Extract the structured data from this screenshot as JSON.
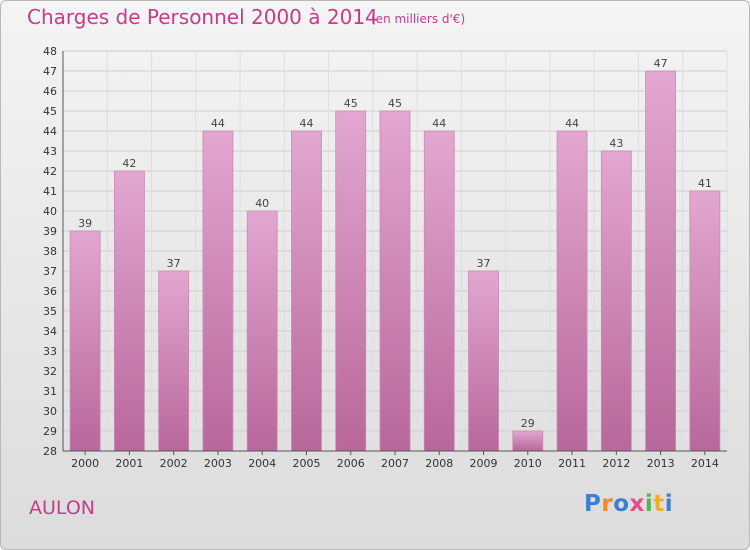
{
  "header": {
    "title": "Charges de Personnel 2000 à 2014",
    "subtitle": "(en milliers d'€)"
  },
  "footer": {
    "location": "AULON",
    "brand": "Proxiti"
  },
  "colors": {
    "title": "#c43c8a",
    "bar_top": "#e2a7d0",
    "bar_bottom": "#b8679a"
  },
  "chart_data": {
    "type": "bar",
    "title": "Charges de Personnel 2000 à 2014",
    "subtitle": "(en milliers d'€)",
    "categories": [
      "2000",
      "2001",
      "2002",
      "2003",
      "2004",
      "2005",
      "2006",
      "2007",
      "2008",
      "2009",
      "2010",
      "2011",
      "2012",
      "2013",
      "2014"
    ],
    "values": [
      39,
      42,
      37,
      44,
      40,
      44,
      45,
      45,
      44,
      37,
      29,
      44,
      43,
      47,
      41
    ],
    "ylim": [
      28,
      48
    ],
    "yticks": [
      28,
      29,
      30,
      31,
      32,
      33,
      34,
      35,
      36,
      37,
      38,
      39,
      40,
      41,
      42,
      43,
      44,
      45,
      46,
      47,
      48
    ],
    "grid": true,
    "legend": "none"
  }
}
